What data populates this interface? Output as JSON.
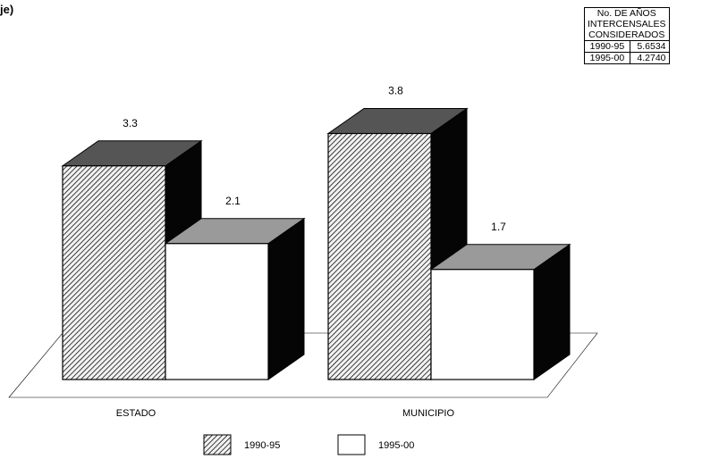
{
  "heading": "je)",
  "colors": {
    "front_1990": "#f2f2f2",
    "top_1990": "#555555",
    "side": "#050505",
    "top_1995": "#9a9a9a",
    "front_1995": "#ffffff"
  },
  "table": {
    "header_lines": [
      "No. DE AÑOS",
      "INTERCENSALES",
      "CONSIDERADOS"
    ],
    "rows": [
      {
        "period": "1990-95",
        "value": "5.6534"
      },
      {
        "period": "1995-00",
        "value": "4.2740"
      }
    ]
  },
  "chart_data": {
    "type": "bar",
    "title": "",
    "xlabel": "",
    "ylabel": "",
    "ylim": [
      0,
      4
    ],
    "grid": false,
    "legend": "bottom",
    "categories": [
      "ESTADO",
      "MUNICIPIO"
    ],
    "series": [
      {
        "name": "1990-95",
        "values": [
          3.3,
          3.8
        ],
        "value_labels": [
          "3.3",
          "3.8"
        ],
        "pattern": "hatched"
      },
      {
        "name": "1995-00",
        "values": [
          2.1,
          1.7
        ],
        "value_labels": [
          "2.1",
          "1.7"
        ],
        "pattern": "white"
      }
    ]
  }
}
